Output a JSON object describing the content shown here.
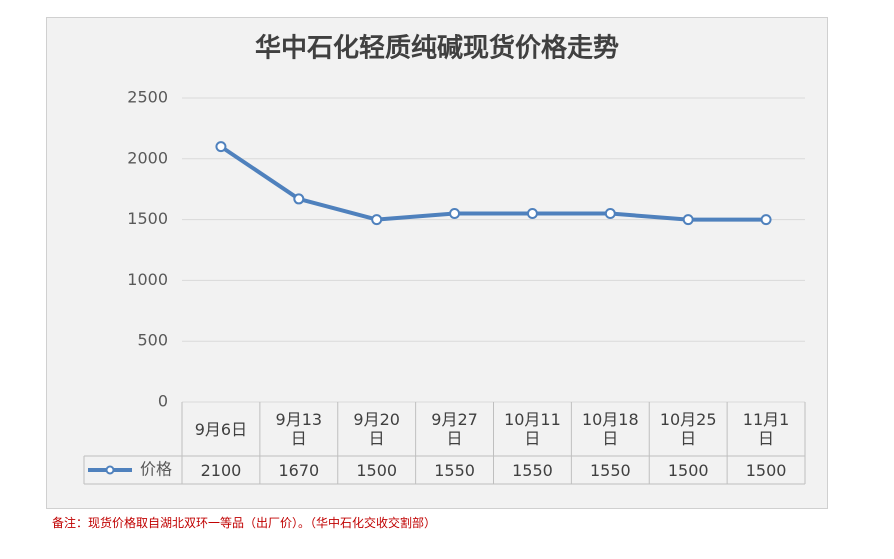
{
  "chart_data": {
    "type": "line",
    "title": "华中石化轻质纯碱现货价格走势",
    "categories": [
      "9月6日",
      "9月13日",
      "9月20日",
      "9月27日",
      "10月11日",
      "10月18日",
      "10月25日",
      "11月1日"
    ],
    "series": [
      {
        "name": "价格",
        "color": "#4f81bd",
        "values": [
          2100,
          1670,
          1500,
          1550,
          1550,
          1550,
          1500,
          1500
        ]
      }
    ],
    "ylim": [
      0,
      2500
    ],
    "yticks": [
      0,
      500,
      1000,
      1500,
      2000,
      2500
    ],
    "grid": true,
    "note": "备注：现货价格取自湖北双环一等品（出厂价）。（华中石化交收交割部）"
  }
}
